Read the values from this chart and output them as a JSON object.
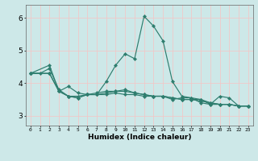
{
  "xlabel": "Humidex (Indice chaleur)",
  "xlim": [
    -0.5,
    23.5
  ],
  "ylim": [
    2.7,
    6.4
  ],
  "yticks": [
    3,
    4,
    5,
    6
  ],
  "xticks": [
    0,
    1,
    2,
    3,
    4,
    5,
    6,
    7,
    8,
    9,
    10,
    11,
    12,
    13,
    14,
    15,
    16,
    17,
    18,
    19,
    20,
    21,
    22,
    23
  ],
  "bg_color": "#cde8e8",
  "line_color": "#2e7d6e",
  "grid_color": "#f0c8c8",
  "lines": [
    {
      "x": [
        0,
        1,
        2,
        3,
        4,
        5,
        6,
        7,
        8,
        9,
        10,
        11,
        12,
        13,
        14,
        15,
        16,
        17,
        18,
        19,
        20,
        21,
        22,
        23
      ],
      "y": [
        4.3,
        4.3,
        4.45,
        3.8,
        3.6,
        3.55,
        3.65,
        3.65,
        4.05,
        4.55,
        4.9,
        4.75,
        6.05,
        5.75,
        5.3,
        4.05,
        3.6,
        3.55,
        3.5,
        3.35,
        3.6,
        3.55,
        3.3,
        3.3
      ]
    },
    {
      "x": [
        0,
        2,
        3,
        4,
        5,
        6,
        7,
        8,
        9,
        10,
        11,
        12,
        13,
        14,
        15,
        16,
        17,
        18,
        19,
        20,
        21,
        22,
        23
      ],
      "y": [
        4.3,
        4.3,
        3.75,
        3.9,
        3.7,
        3.65,
        3.65,
        3.65,
        3.7,
        3.65,
        3.65,
        3.6,
        3.6,
        3.6,
        3.55,
        3.5,
        3.5,
        3.5,
        3.4,
        3.35,
        3.35,
        3.3,
        3.3
      ]
    },
    {
      "x": [
        0,
        2,
        3,
        4,
        5,
        6,
        7,
        8,
        9,
        10,
        11,
        12,
        13,
        14,
        15,
        16,
        17,
        18,
        19,
        20,
        21,
        22,
        23
      ],
      "y": [
        4.3,
        4.3,
        3.75,
        3.6,
        3.55,
        3.65,
        3.65,
        3.7,
        3.75,
        3.75,
        3.7,
        3.65,
        3.6,
        3.6,
        3.55,
        3.5,
        3.5,
        3.45,
        3.4,
        3.35,
        3.35,
        3.3,
        3.3
      ]
    },
    {
      "x": [
        0,
        2,
        3,
        4,
        5,
        6,
        7,
        8,
        9,
        10,
        11,
        12,
        13,
        14,
        15,
        16,
        17,
        18,
        19,
        20,
        21,
        22,
        23
      ],
      "y": [
        4.3,
        4.55,
        3.75,
        3.6,
        3.6,
        3.65,
        3.7,
        3.75,
        3.75,
        3.8,
        3.7,
        3.65,
        3.6,
        3.6,
        3.5,
        3.55,
        3.55,
        3.4,
        3.35,
        3.35,
        3.35,
        3.3,
        3.3
      ]
    }
  ]
}
